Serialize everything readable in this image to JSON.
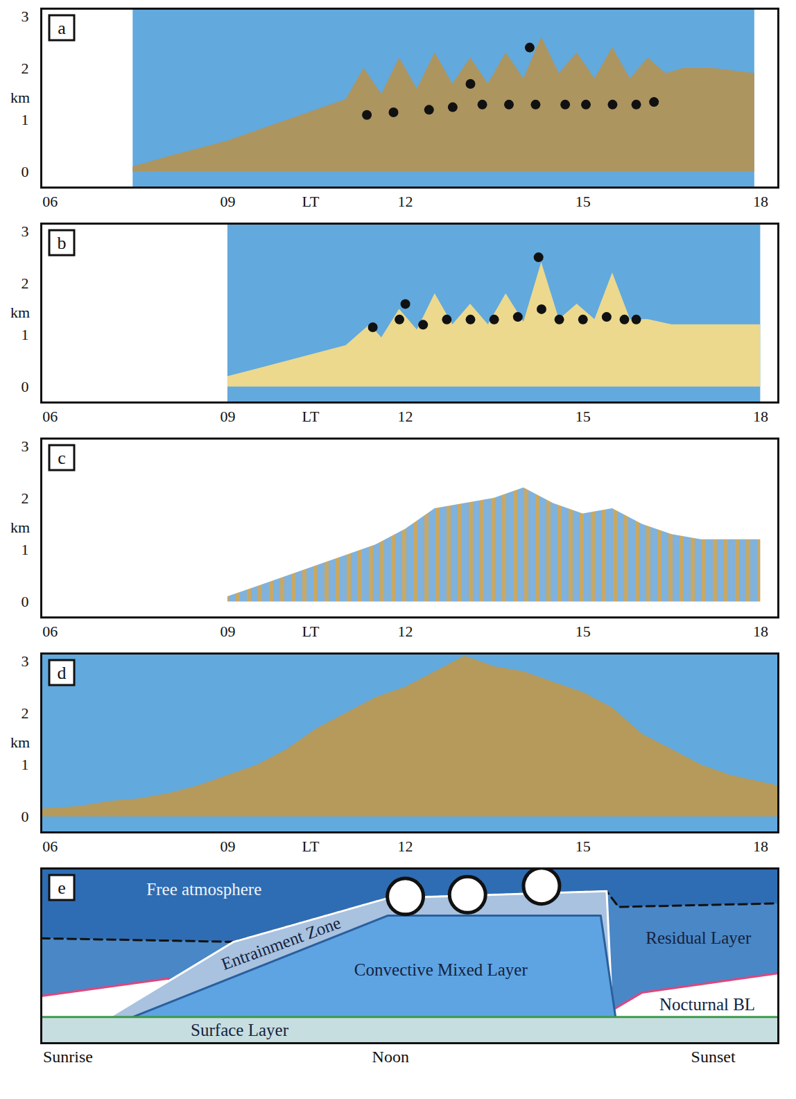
{
  "chart_data": [
    {
      "type": "area",
      "panel": "a",
      "y_label": "km",
      "color": "#ad9560",
      "xlim": [
        5.85,
        18.3
      ],
      "ylim": [
        -0.3,
        3.15
      ],
      "xticks": [
        {
          "value": 6,
          "label": "06"
        },
        {
          "value": 9,
          "label": "09"
        },
        {
          "value": 10.4,
          "label": "LT"
        },
        12,
        15,
        18
      ],
      "yticks": [
        0,
        1,
        2,
        3
      ],
      "x": [
        7.4,
        8,
        8.5,
        9,
        9.5,
        10,
        10.5,
        11,
        11.3,
        11.6,
        11.9,
        12.2,
        12.5,
        12.8,
        13.1,
        13.4,
        13.7,
        14.0,
        14.3,
        14.6,
        14.9,
        15.2,
        15.5,
        15.8,
        16.1,
        16.4,
        16.7,
        17.2,
        17.9
      ],
      "values": [
        0.1,
        0.3,
        0.45,
        0.6,
        0.8,
        1.0,
        1.2,
        1.4,
        2.0,
        1.5,
        2.2,
        1.6,
        2.3,
        1.7,
        2.2,
        1.7,
        2.3,
        1.8,
        2.6,
        1.9,
        2.3,
        1.8,
        2.4,
        1.8,
        2.2,
        1.9,
        2.0,
        2.0,
        1.9
      ],
      "clouds": {
        "x": [
          11.35,
          11.8,
          12.4,
          12.8,
          13.3,
          13.75,
          14.2,
          14.7,
          15.05,
          15.5,
          15.9,
          16.2,
          14.1,
          13.1
        ],
        "y": [
          1.1,
          1.15,
          1.2,
          1.25,
          1.3,
          1.3,
          1.3,
          1.3,
          1.3,
          1.3,
          1.3,
          1.35,
          2.4,
          1.7
        ]
      }
    },
    {
      "type": "area",
      "panel": "b",
      "y_label": "km",
      "color": "#ecd98e",
      "xlim": [
        5.85,
        18.3
      ],
      "ylim": [
        -0.3,
        3.15
      ],
      "xticks": [
        {
          "value": 6,
          "label": "06"
        },
        {
          "value": 9,
          "label": "09"
        },
        {
          "value": 10.4,
          "label": "LT"
        },
        12,
        15,
        18
      ],
      "yticks": [
        0,
        1,
        2,
        3
      ],
      "x": [
        9.0,
        9.5,
        10,
        10.5,
        11,
        11.4,
        11.6,
        11.9,
        12.2,
        12.5,
        12.8,
        13.1,
        13.4,
        13.7,
        14.0,
        14.3,
        14.6,
        14.9,
        15.2,
        15.5,
        15.8,
        16.1,
        16.5,
        17,
        18
      ],
      "values": [
        0.2,
        0.35,
        0.5,
        0.65,
        0.8,
        1.2,
        0.95,
        1.5,
        1.1,
        1.8,
        1.2,
        1.6,
        1.2,
        1.8,
        1.25,
        2.4,
        1.3,
        1.6,
        1.3,
        2.2,
        1.3,
        1.3,
        1.2,
        1.2,
        1.2
      ],
      "clouds": {
        "x": [
          11.45,
          11.9,
          12.3,
          12.7,
          13.1,
          13.5,
          13.9,
          14.3,
          14.6,
          15.0,
          15.4,
          15.7,
          15.9,
          14.25,
          12.0
        ],
        "y": [
          1.15,
          1.3,
          1.2,
          1.3,
          1.3,
          1.3,
          1.35,
          1.5,
          1.3,
          1.3,
          1.35,
          1.3,
          1.3,
          2.5,
          1.6
        ]
      }
    },
    {
      "type": "area",
      "panel": "c",
      "y_label": "km",
      "color": "#7fb2dd",
      "xlim": [
        5.85,
        18.3
      ],
      "ylim": [
        -0.3,
        3.15
      ],
      "xticks": [
        {
          "value": 6,
          "label": "06"
        },
        {
          "value": 9,
          "label": "09"
        },
        {
          "value": 10.4,
          "label": "LT"
        },
        12,
        15,
        18
      ],
      "yticks": [
        0,
        1,
        2,
        3
      ],
      "x": [
        9.0,
        9.5,
        10,
        10.5,
        11,
        11.5,
        12,
        12.5,
        13,
        13.5,
        14,
        14.5,
        15,
        15.5,
        16,
        16.5,
        17,
        18
      ],
      "values": [
        0.1,
        0.3,
        0.5,
        0.7,
        0.9,
        1.1,
        1.4,
        1.8,
        1.9,
        2.0,
        2.2,
        1.9,
        1.7,
        1.8,
        1.5,
        1.3,
        1.2,
        1.2
      ]
    },
    {
      "type": "area",
      "panel": "d",
      "y_label": "km",
      "color": "#b59a5c",
      "xlim": [
        5.85,
        18.3
      ],
      "ylim": [
        -0.3,
        3.15
      ],
      "xticks": [
        {
          "value": 6,
          "label": "06"
        },
        {
          "value": 9,
          "label": "09"
        },
        {
          "value": 10.4,
          "label": "LT"
        },
        12,
        15,
        18
      ],
      "yticks": [
        0,
        1,
        2,
        3
      ],
      "x": [
        5.85,
        6.5,
        7,
        7.5,
        8,
        8.5,
        9,
        9.5,
        10,
        10.5,
        11,
        11.5,
        12,
        12.5,
        13,
        13.5,
        14,
        14.5,
        15,
        15.5,
        16,
        16.5,
        17,
        17.5,
        18.3
      ],
      "values": [
        0.15,
        0.2,
        0.3,
        0.35,
        0.45,
        0.6,
        0.8,
        1.0,
        1.3,
        1.7,
        2.0,
        2.3,
        2.5,
        2.8,
        3.1,
        2.9,
        2.8,
        2.6,
        2.4,
        2.1,
        1.6,
        1.3,
        1.0,
        0.8,
        0.6
      ]
    },
    {
      "type": "layers",
      "panel": "e",
      "tick_labels": "x",
      "xlim": [
        5.85,
        18.3
      ],
      "ylim": [
        0,
        1
      ],
      "xticks": [
        {
          "value": 6.3,
          "label": "Sunrise"
        },
        {
          "value": 11.75,
          "label": "Noon"
        },
        {
          "value": 17.2,
          "label": "Sunset"
        }
      ],
      "layers": [
        {
          "name": "Free atmosphere",
          "color": "#2e6db3",
          "x": [
            5.85,
            18.3
          ],
          "top": [
            1,
            1
          ],
          "label_x": 8.6,
          "label_y": 0.88
        },
        {
          "name": "Residual Layer",
          "color": "#4a87c6",
          "x": [
            5.85,
            9.1,
            11.7,
            15.4,
            15.6,
            18.3
          ],
          "top": [
            0.6,
            0.58,
            0.83,
            0.87,
            0.78,
            0.8
          ],
          "line_style": "dashed",
          "label_x": 16.95,
          "label_y": 0.6
        },
        {
          "name": "Nocturnal BL",
          "color": "#ffffff",
          "x": [
            5.85,
            8.0,
            12,
            15.3,
            16.0,
            18.3
          ],
          "top": [
            0.27,
            0.37,
            null,
            0.15,
            0.29,
            0.4
          ],
          "label_x": 17.1,
          "label_y": 0.22
        },
        {
          "name": "Entrainment Zone",
          "color": "#a8c2df",
          "x": [
            7.0,
            9.1,
            11.7,
            15.4,
            15.5
          ],
          "top": [
            0.15,
            0.58,
            0.83,
            0.87,
            0.15
          ],
          "label_x": 9.9,
          "label_y": 0.57
        },
        {
          "name": "Convective Mixed Layer",
          "color": "#5ea4e2",
          "x": [
            7.4,
            11.7,
            15.3,
            15.55
          ],
          "top": [
            0.15,
            0.73,
            0.73,
            0.15
          ],
          "label_x": 12.6,
          "label_y": 0.42
        },
        {
          "name": "Surface Layer",
          "color": "#c7dee0",
          "x": [
            5.85,
            18.3
          ],
          "top": [
            0.15,
            0.15
          ],
          "label_x": 9.2,
          "label_y": 0.075
        }
      ],
      "clouds": {
        "x": [
          12.0,
          13.05,
          14.3
        ],
        "y": [
          0.84,
          0.85,
          0.9
        ]
      }
    }
  ]
}
